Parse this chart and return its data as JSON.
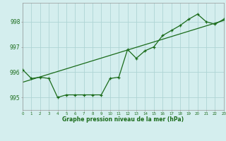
{
  "title": "Graphe pression niveau de la mer (hPa)",
  "hours": [
    0,
    1,
    2,
    3,
    4,
    5,
    6,
    7,
    8,
    9,
    10,
    11,
    12,
    13,
    14,
    15,
    16,
    17,
    18,
    19,
    20,
    21,
    22,
    23
  ],
  "pressure": [
    996.1,
    995.75,
    995.8,
    995.75,
    995.0,
    995.1,
    995.1,
    995.1,
    995.1,
    995.1,
    995.75,
    995.8,
    996.9,
    996.55,
    996.85,
    997.0,
    997.45,
    997.65,
    997.85,
    998.1,
    998.3,
    998.0,
    997.9,
    998.1
  ],
  "trend_x": [
    0,
    23
  ],
  "trend_y": [
    995.6,
    998.05
  ],
  "line_color": "#1a6b1a",
  "bg_color": "#d4eeee",
  "grid_color": "#aed4d4",
  "text_color": "#1a6b1a",
  "ylim": [
    994.5,
    998.75
  ],
  "yticks": [
    995,
    996,
    997,
    998
  ],
  "xlim": [
    0,
    23
  ]
}
